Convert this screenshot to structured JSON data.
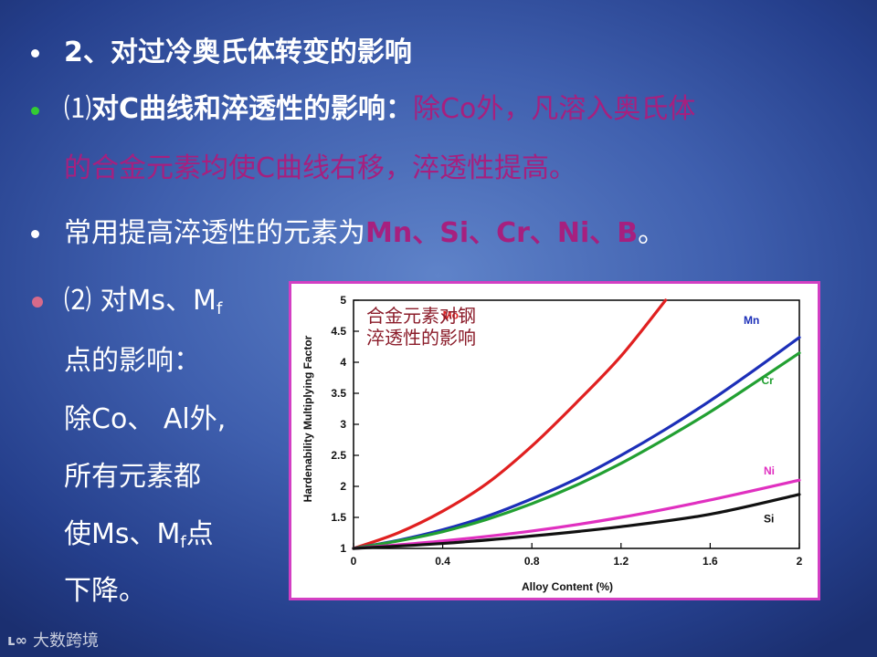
{
  "slide": {
    "line1": "2、对过冷奥氏体转变的影响",
    "line2": {
      "prefix": "⑴",
      "head": "对C曲线和淬透性的影响：",
      "body1": "除Co外，凡溶入奥氏体",
      "body2": "的合金元素均使C曲线右移，淬透性提高。"
    },
    "line3": {
      "head": "常用提高淬透性的元素为",
      "elements": "Mn、Si、Cr、Ni、B",
      "end": "。"
    },
    "left_block": {
      "l1a": "⑵ 对Ms、M",
      "l1sub": "f",
      "l2": "点的影响：",
      "l3": "除Co、 Al外,",
      "l4": "所有元素都",
      "l5a": "使Ms、M",
      "l5sub": "f",
      "l5b": "点",
      "l6": "下降。"
    },
    "watermark": "大数跨境"
  },
  "colors": {
    "bullet_white": "#ffffff",
    "bullet_green": "#33cc33",
    "bullet_pink": "#d66a8a",
    "accent_pink": "#a6207f",
    "frame": "#d33fc3",
    "Mo": "#e02020",
    "Mn": "#1c2fb8",
    "Cr": "#22a032",
    "Ni": "#e030c0",
    "Si": "#111111"
  },
  "chart_data": {
    "type": "line",
    "annotation": [
      "合金元素对钢",
      "淬透性的影响"
    ],
    "xlabel": "Alloy Content (%)",
    "ylabel": "Hardenability Multiplying Factor",
    "xlim": [
      0,
      2
    ],
    "ylim": [
      1,
      5
    ],
    "xticks": [
      0,
      0.4,
      0.8,
      1.2,
      1.6,
      2
    ],
    "yticks": [
      1,
      1.5,
      2,
      2.5,
      3,
      3.5,
      4,
      4.5,
      5
    ],
    "series": [
      {
        "name": "Mo",
        "color": "#e02020",
        "x": [
          0,
          0.2,
          0.4,
          0.6,
          0.8,
          1.0,
          1.2,
          1.4
        ],
        "y": [
          1,
          1.25,
          1.6,
          2.05,
          2.65,
          3.35,
          4.1,
          5.0
        ]
      },
      {
        "name": "Mn",
        "color": "#1c2fb8",
        "x": [
          0,
          0.2,
          0.4,
          0.6,
          0.8,
          1.0,
          1.2,
          1.4,
          1.6,
          1.8,
          2.0
        ],
        "y": [
          1,
          1.13,
          1.3,
          1.52,
          1.8,
          2.12,
          2.5,
          2.92,
          3.38,
          3.88,
          4.4
        ]
      },
      {
        "name": "Cr",
        "color": "#22a032",
        "x": [
          0,
          0.2,
          0.4,
          0.6,
          0.8,
          1.0,
          1.2,
          1.4,
          1.6,
          1.8,
          2.0
        ],
        "y": [
          1,
          1.12,
          1.27,
          1.47,
          1.72,
          2.02,
          2.37,
          2.77,
          3.2,
          3.67,
          4.15
        ]
      },
      {
        "name": "Ni",
        "color": "#e030c0",
        "x": [
          0,
          0.4,
          0.8,
          1.2,
          1.6,
          2.0
        ],
        "y": [
          1,
          1.12,
          1.28,
          1.5,
          1.78,
          2.1
        ]
      },
      {
        "name": "Si",
        "color": "#111111",
        "x": [
          0,
          0.4,
          0.8,
          1.2,
          1.6,
          2.0
        ],
        "y": [
          1,
          1.08,
          1.2,
          1.35,
          1.55,
          1.87
        ]
      }
    ]
  }
}
